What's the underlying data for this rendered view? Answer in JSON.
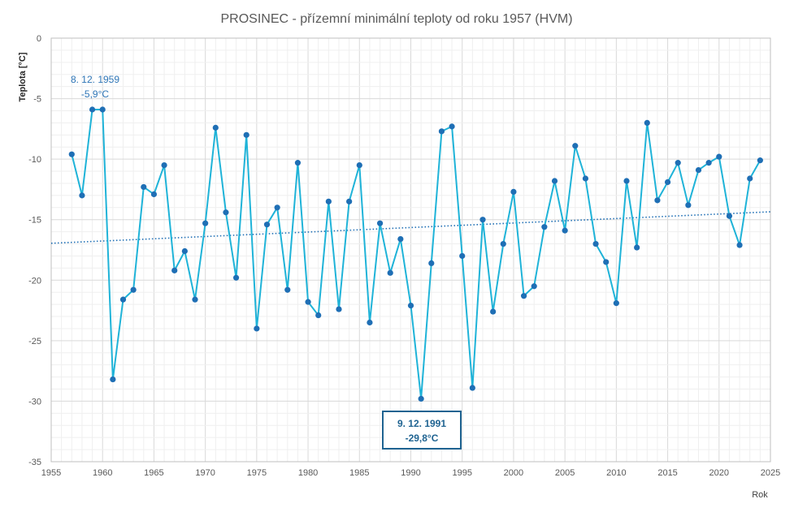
{
  "chart_data": {
    "type": "line",
    "title": "PROSINEC - přízemní minimální teploty od roku 1957 (HVM)",
    "xlabel": "Rok",
    "ylabel": "Teplota [°C]",
    "xlim": [
      1955,
      2025
    ],
    "ylim": [
      -35,
      0
    ],
    "x_ticks": [
      "1955",
      "1960",
      "1965",
      "1970",
      "1975",
      "1980",
      "1985",
      "1990",
      "1995",
      "2000",
      "2005",
      "2010",
      "2015",
      "2020",
      "2025"
    ],
    "y_ticks": [
      "0",
      "-5",
      "-10",
      "-15",
      "-20",
      "-25",
      "-30",
      "-35"
    ],
    "grid": true,
    "legend": "none",
    "series": [
      {
        "x": [
          1957,
          1958,
          1959,
          1960,
          1961,
          1962,
          1963,
          1964,
          1965,
          1966,
          1967,
          1968,
          1969,
          1970,
          1971,
          1972,
          1973,
          1974,
          1975,
          1976,
          1977,
          1978,
          1979,
          1980,
          1981,
          1982,
          1983,
          1984,
          1985,
          1986,
          1987,
          1988,
          1989,
          1990,
          1991,
          1992,
          1993,
          1994,
          1995,
          1996,
          1997,
          1998,
          1999,
          2000,
          2001,
          2002,
          2003,
          2004,
          2005,
          2006,
          2007,
          2008,
          2009,
          2010,
          2011,
          2012,
          2013,
          2014,
          2015,
          2016,
          2017,
          2018,
          2019,
          2020,
          2021,
          2022,
          2023,
          2024
        ],
        "values": [
          -9.6,
          -13.0,
          -5.9,
          -5.9,
          -28.2,
          -21.6,
          -20.8,
          -12.3,
          -12.9,
          -10.5,
          -19.2,
          -17.6,
          -21.6,
          -15.3,
          -7.4,
          -14.4,
          -19.8,
          -8.0,
          -24.0,
          -15.4,
          -14.0,
          -20.8,
          -10.3,
          -21.8,
          -22.9,
          -13.5,
          -22.4,
          -13.5,
          -10.5,
          -23.5,
          -15.3,
          -19.4,
          -16.6,
          -22.1,
          -29.8,
          -18.6,
          -7.7,
          -7.3,
          -18.0,
          -28.9,
          -15.0,
          -22.6,
          -17.0,
          -12.7,
          -21.3,
          -20.5,
          -15.6,
          -11.8,
          -15.9,
          -8.9,
          -11.6,
          -17.0,
          -18.5,
          -21.9,
          -11.8,
          -17.3,
          -7.0,
          -13.4,
          -11.9,
          -10.3,
          -13.8,
          -10.9,
          -10.3,
          -9.8,
          -14.7,
          -17.1,
          -11.6,
          -10.1
        ]
      }
    ],
    "trendline": {
      "type": "linear",
      "y_start": -16.95,
      "y_end": -14.35
    },
    "annotations": [
      {
        "line1": "8. 12. 1959",
        "line2": "-5,9°C",
        "x": 1959,
        "y": -5.9
      },
      {
        "line1": "9. 12. 1991",
        "line2": "-29,8°C",
        "x": 1991,
        "y": -29.8
      }
    ],
    "colors": {
      "line": "#1fb3d8",
      "marker": "#1f6fb5",
      "trend": "#1f6fb5",
      "grid": "#d9d9d9",
      "annotation": "#2e75b6",
      "annotation_box": "#1f6391"
    }
  }
}
